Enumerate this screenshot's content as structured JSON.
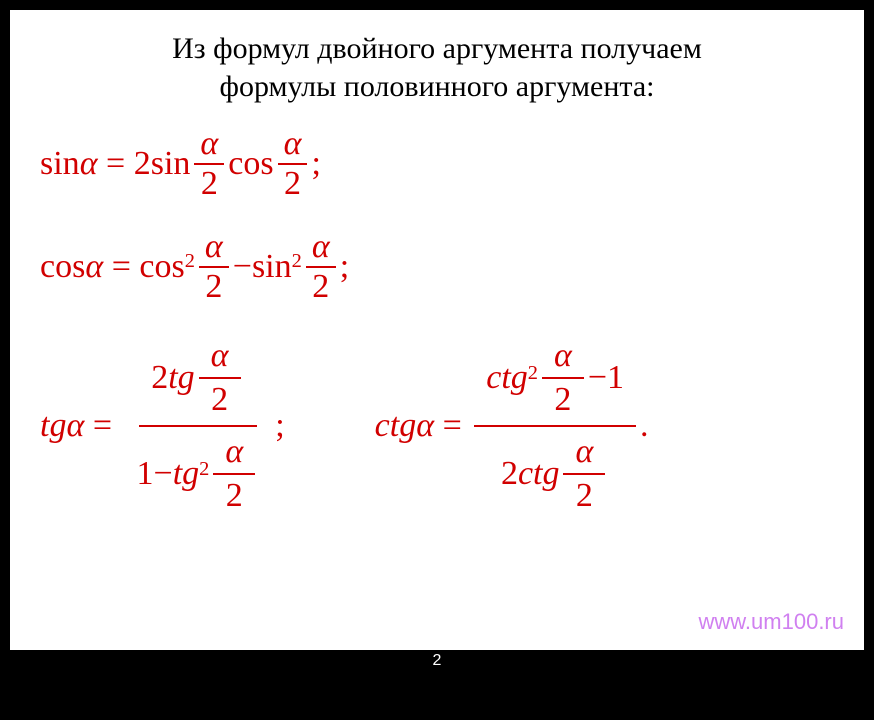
{
  "title_line1": "Из формул двойного аргумента получаем",
  "title_line2": "формулы половинного аргумента:",
  "colors": {
    "formula": "#d10000",
    "title": "#000000",
    "background": "#ffffff",
    "page_bg": "#000000",
    "watermark": "#d080f0",
    "pagenum": "#ffffff"
  },
  "font_sizes": {
    "title": 30,
    "formula": 34,
    "watermark": 22,
    "pagenum": 16
  },
  "sym": {
    "alpha": "α",
    "eq": "=",
    "minus": "−",
    "two": "2",
    "one": "1",
    "semi": ";",
    "dot": "."
  },
  "fn": {
    "sin": "sin",
    "cos": "cos",
    "tg": "tg",
    "ctg": "ctg"
  },
  "watermark": "www.um100.ru",
  "page_number": "2"
}
